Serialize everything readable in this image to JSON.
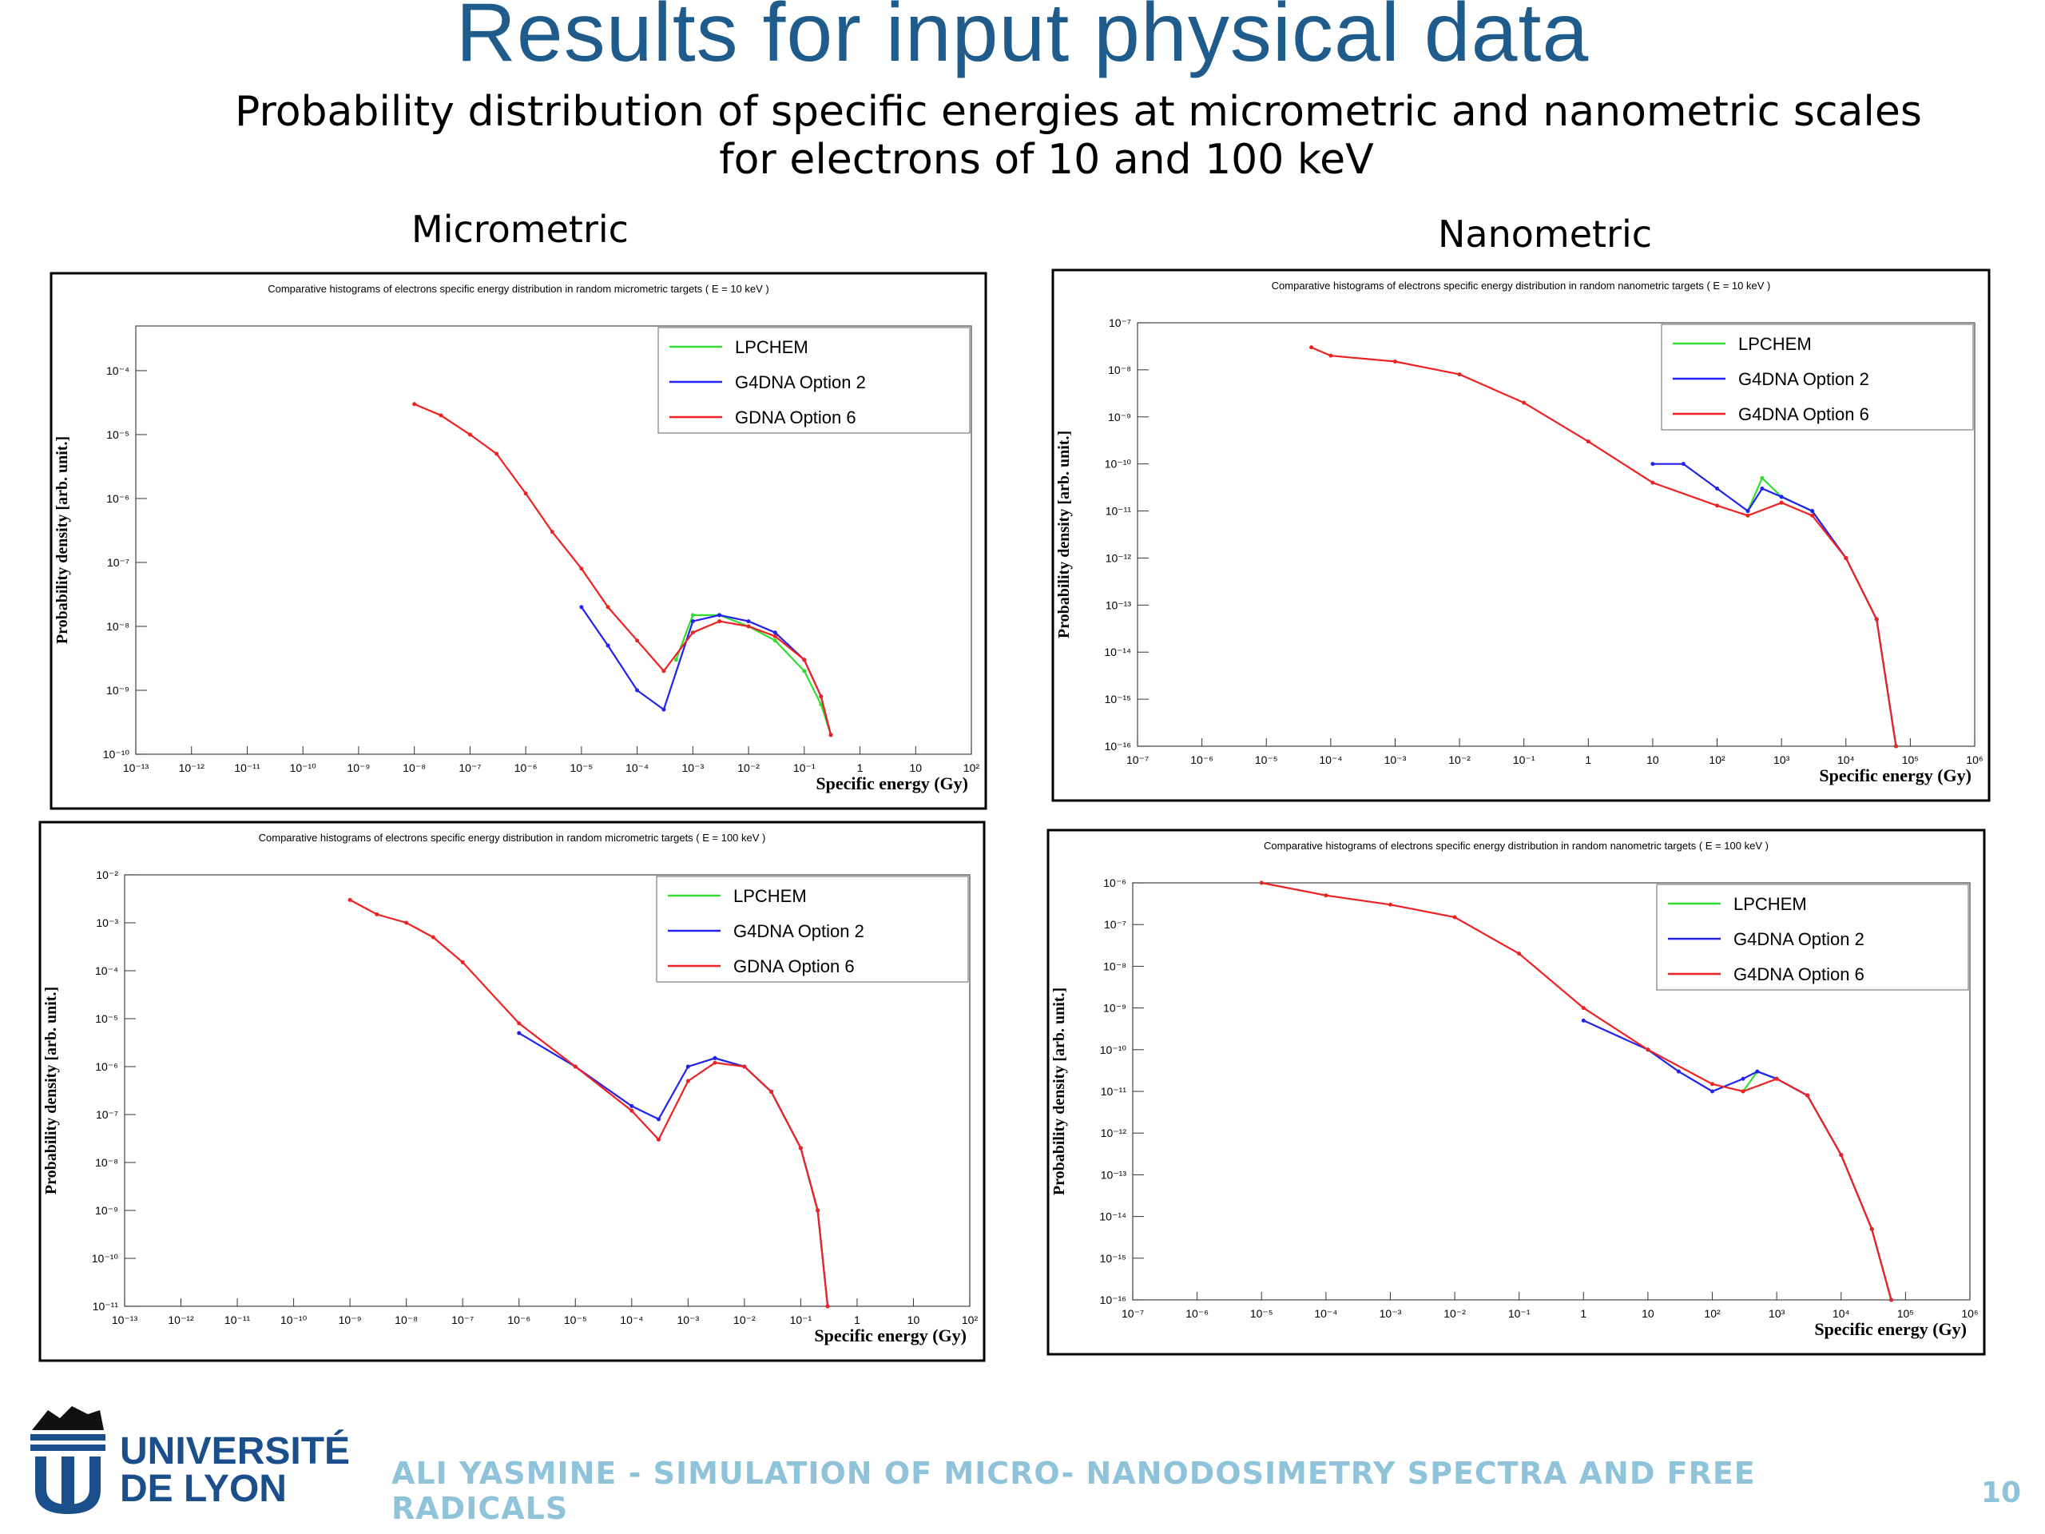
{
  "slide": {
    "title": "Results for input physical data",
    "subtitle_line1": "Probability distribution of specific energies at micrometric and nanometric scales",
    "subtitle_line2": "for electrons of 10 and 100 keV",
    "label_micro": "Micrometric",
    "label_nano": "Nanometric",
    "footer": "ALI YASMINE - SIMULATION OF MICRO- NANODOSIMETRY SPECTRA AND FREE RADICALS",
    "page_number": "10",
    "logo_line1": "UNIVERSITÉ",
    "logo_line2": "DE LYON"
  },
  "colors": {
    "title": "#1f5c8c",
    "lpchem": "#33dd33",
    "g4dna_opt2": "#2222ee",
    "g4dna_opt6": "#ee2222",
    "footer": "#8fc3d9",
    "logo": "#1a4f8b"
  },
  "chart_data": [
    {
      "type": "line",
      "title": "Comparative histograms of electrons specific energy distribution in random micrometric targets ( E = 10 keV )",
      "xlabel": "Specific energy (Gy)",
      "ylabel": "Probability density [arb. unit.]",
      "xscale": "log",
      "yscale": "log",
      "xlim": [
        1e-13,
        100
      ],
      "ylim": [
        1e-10,
        0.0005
      ],
      "xticks": [
        "10⁻¹³",
        "10⁻¹²",
        "10⁻¹¹",
        "10⁻¹⁰",
        "10⁻⁹",
        "10⁻⁸",
        "10⁻⁷",
        "10⁻⁶",
        "10⁻⁵",
        "10⁻⁴",
        "10⁻³",
        "10⁻²",
        "10⁻¹",
        "1",
        "10",
        "10²"
      ],
      "yticks": [
        "10⁻¹⁰",
        "10⁻⁹",
        "10⁻⁸",
        "10⁻⁷",
        "10⁻⁶",
        "10⁻⁵",
        "10⁻⁴"
      ],
      "legend_position": "top-right",
      "series": [
        {
          "name": "LPCHEM",
          "color": "#33dd33",
          "x": [
            0.0005,
            0.001,
            0.003,
            0.01,
            0.03,
            0.1,
            0.2,
            0.3
          ],
          "y": [
            3e-09,
            1.5e-08,
            1.5e-08,
            1e-08,
            6e-09,
            2e-09,
            6e-10,
            2e-10
          ]
        },
        {
          "name": "G4DNA Option  2",
          "color": "#2222ee",
          "x": [
            1e-05,
            3e-05,
            0.0001,
            0.0003,
            0.001,
            0.003,
            0.01,
            0.03,
            0.1,
            0.2,
            0.3
          ],
          "y": [
            2e-08,
            5e-09,
            1e-09,
            5e-10,
            1.2e-08,
            1.5e-08,
            1.2e-08,
            8e-09,
            3e-09,
            8e-10,
            2e-10
          ]
        },
        {
          "name": "GDNA Option 6",
          "color": "#ee2222",
          "x": [
            1e-08,
            3e-08,
            1e-07,
            3e-07,
            1e-06,
            3e-06,
            1e-05,
            3e-05,
            0.0001,
            0.0003,
            0.001,
            0.003,
            0.01,
            0.03,
            0.1,
            0.2,
            0.3
          ],
          "y": [
            3e-05,
            2e-05,
            1e-05,
            5e-06,
            1.2e-06,
            3e-07,
            8e-08,
            2e-08,
            6e-09,
            2e-09,
            8e-09,
            1.2e-08,
            1e-08,
            7e-09,
            3e-09,
            8e-10,
            2e-10
          ]
        }
      ]
    },
    {
      "type": "line",
      "title": "Comparative histograms of electrons specific energy distribution in random nanometric targets ( E = 10 keV )",
      "xlabel": "Specific energy (Gy)",
      "ylabel": "Probability density [arb. unit.]",
      "xscale": "log",
      "yscale": "log",
      "xlim": [
        1e-07,
        1000000.0
      ],
      "ylim": [
        1e-16,
        1e-07
      ],
      "xticks": [
        "10⁻⁷",
        "10⁻⁶",
        "10⁻⁵",
        "10⁻⁴",
        "10⁻³",
        "10⁻²",
        "10⁻¹",
        "1",
        "10",
        "10²",
        "10³",
        "10⁴",
        "10⁵",
        "10⁶"
      ],
      "yticks": [
        "10⁻¹⁶",
        "10⁻¹⁵",
        "10⁻¹⁴",
        "10⁻¹³",
        "10⁻¹²",
        "10⁻¹¹",
        "10⁻¹⁰",
        "10⁻⁹",
        "10⁻⁸",
        "10⁻⁷"
      ],
      "legend_position": "top-right",
      "series": [
        {
          "name": "LPCHEM",
          "color": "#33dd33",
          "x": [
            300,
            500,
            1000,
            3000,
            10000,
            30000,
            60000
          ],
          "y": [
            1e-11,
            5e-11,
            2e-11,
            1e-11,
            1e-12,
            5e-14,
            1e-16
          ]
        },
        {
          "name": "G4DNA Option 2",
          "color": "#2222ee",
          "x": [
            10,
            30,
            100,
            300,
            500,
            1000,
            3000,
            10000,
            30000,
            60000
          ],
          "y": [
            1e-10,
            1e-10,
            3e-11,
            1e-11,
            3e-11,
            2e-11,
            1e-11,
            1e-12,
            5e-14,
            1e-16
          ]
        },
        {
          "name": "G4DNA Option 6",
          "color": "#ee2222",
          "x": [
            5e-05,
            0.0001,
            0.001,
            0.01,
            0.1,
            1,
            10,
            100,
            300,
            1000,
            3000,
            10000,
            30000,
            60000
          ],
          "y": [
            3e-08,
            2e-08,
            1.5e-08,
            8e-09,
            2e-09,
            3e-10,
            4e-11,
            1.3e-11,
            8e-12,
            1.5e-11,
            8e-12,
            1e-12,
            5e-14,
            1e-16
          ]
        }
      ]
    },
    {
      "type": "line",
      "title": "Comparative histograms of electrons specific energy distribution in random micrometric targets ( E = 100 keV )",
      "xlabel": "Specific energy (Gy)",
      "ylabel": "Probability density [arb. unit.]",
      "xscale": "log",
      "yscale": "log",
      "xlim": [
        1e-13,
        100
      ],
      "ylim": [
        1e-11,
        0.01
      ],
      "xticks": [
        "10⁻¹³",
        "10⁻¹²",
        "10⁻¹¹",
        "10⁻¹⁰",
        "10⁻⁹",
        "10⁻⁸",
        "10⁻⁷",
        "10⁻⁶",
        "10⁻⁵",
        "10⁻⁴",
        "10⁻³",
        "10⁻²",
        "10⁻¹",
        "1",
        "10",
        "10²"
      ],
      "yticks": [
        "10⁻¹¹",
        "10⁻¹⁰",
        "10⁻⁹",
        "10⁻⁸",
        "10⁻⁷",
        "10⁻⁶",
        "10⁻⁵",
        "10⁻⁴",
        "10⁻³",
        "10⁻²"
      ],
      "legend_position": "top-right",
      "series": [
        {
          "name": "LPCHEM",
          "color": "#33dd33",
          "x": [
            0.001,
            0.003,
            0.01,
            0.03,
            0.1,
            0.2,
            0.3
          ],
          "y": [
            1e-06,
            1.5e-06,
            1e-06,
            3e-07,
            2e-08,
            1e-09,
            1e-11
          ]
        },
        {
          "name": "G4DNA Option  2",
          "color": "#2222ee",
          "x": [
            1e-06,
            1e-05,
            0.0001,
            0.0003,
            0.001,
            0.003,
            0.01,
            0.03,
            0.1,
            0.2,
            0.3
          ],
          "y": [
            5e-06,
            1e-06,
            1.5e-07,
            8e-08,
            1e-06,
            1.5e-06,
            1e-06,
            3e-07,
            2e-08,
            1e-09,
            1e-11
          ]
        },
        {
          "name": "GDNA Option 6",
          "color": "#ee2222",
          "x": [
            1e-09,
            3e-09,
            1e-08,
            3e-08,
            1e-07,
            1e-06,
            1e-05,
            0.0001,
            0.0003,
            0.001,
            0.003,
            0.01,
            0.03,
            0.1,
            0.2,
            0.3
          ],
          "y": [
            0.003,
            0.0015,
            0.001,
            0.0005,
            0.00015,
            8e-06,
            1e-06,
            1.2e-07,
            3e-08,
            5e-07,
            1.2e-06,
            1e-06,
            3e-07,
            2e-08,
            1e-09,
            1e-11
          ]
        }
      ]
    },
    {
      "type": "line",
      "title": "Comparative histograms of electrons specific energy distribution in random nanometric targets ( E = 100 keV )",
      "xlabel": "Specific energy (Gy)",
      "ylabel": "Probability density [arb. unit.]",
      "xscale": "log",
      "yscale": "log",
      "xlim": [
        1e-07,
        1000000.0
      ],
      "ylim": [
        1e-16,
        1e-06
      ],
      "xticks": [
        "10⁻⁷",
        "10⁻⁶",
        "10⁻⁵",
        "10⁻⁴",
        "10⁻³",
        "10⁻²",
        "10⁻¹",
        "1",
        "10",
        "10²",
        "10³",
        "10⁴",
        "10⁵",
        "10⁶"
      ],
      "yticks": [
        "10⁻¹⁶",
        "10⁻¹⁵",
        "10⁻¹⁴",
        "10⁻¹³",
        "10⁻¹²",
        "10⁻¹¹",
        "10⁻¹⁰",
        "10⁻⁹",
        "10⁻⁸",
        "10⁻⁷",
        "10⁻⁶"
      ],
      "legend_position": "top-right",
      "series": [
        {
          "name": "LPCHEM",
          "color": "#33dd33",
          "x": [
            300,
            500,
            1000,
            3000,
            10000,
            30000,
            60000
          ],
          "y": [
            1e-11,
            3e-11,
            2e-11,
            8e-12,
            3e-13,
            5e-15,
            1e-16
          ]
        },
        {
          "name": "G4DNA Option 2",
          "color": "#2222ee",
          "x": [
            1,
            10,
            30,
            100,
            300,
            500,
            1000,
            3000,
            10000,
            30000,
            60000
          ],
          "y": [
            5e-10,
            1e-10,
            3e-11,
            1e-11,
            2e-11,
            3e-11,
            2e-11,
            8e-12,
            3e-13,
            5e-15,
            1e-16
          ]
        },
        {
          "name": "G4DNA Option 6",
          "color": "#ee2222",
          "x": [
            1e-05,
            0.0001,
            0.001,
            0.01,
            0.1,
            1,
            10,
            100,
            300,
            1000,
            3000,
            10000,
            30000,
            60000
          ],
          "y": [
            1e-06,
            5e-07,
            3e-07,
            1.5e-07,
            2e-08,
            1e-09,
            1e-10,
            1.5e-11,
            1e-11,
            2e-11,
            8e-12,
            3e-13,
            5e-15,
            1e-16
          ]
        }
      ]
    }
  ]
}
